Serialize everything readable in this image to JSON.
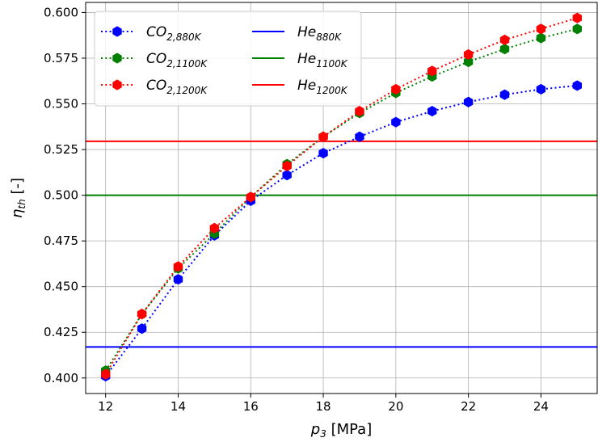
{
  "chart_data": {
    "type": "line",
    "xlabel_main": "p",
    "xlabel_sub": "3",
    "xlabel_unit": " [MPa]",
    "ylabel_main": "η",
    "ylabel_sub": "th",
    "ylabel_unit": " [-]",
    "xlim": [
      11.45,
      25.55
    ],
    "ylim": [
      0.3915,
      0.6055
    ],
    "xticks": [
      12,
      14,
      16,
      18,
      20,
      22,
      24
    ],
    "xtick_labels": [
      "12",
      "14",
      "16",
      "18",
      "20",
      "22",
      "24"
    ],
    "yticks": [
      0.4,
      0.425,
      0.45,
      0.475,
      0.5,
      0.525,
      0.55,
      0.575,
      0.6
    ],
    "ytick_labels": [
      "0.400",
      "0.425",
      "0.450",
      "0.475",
      "0.500",
      "0.525",
      "0.550",
      "0.575",
      "0.600"
    ],
    "grid": true,
    "legend_position": "top-left",
    "x": [
      12,
      13,
      14,
      15,
      16,
      17,
      18,
      19,
      20,
      21,
      22,
      23,
      24,
      25
    ],
    "series": [
      {
        "name_main": "CO",
        "name_sub": "2,880K",
        "style": "dotted-markers",
        "color": "#0000ff",
        "values": [
          0.401,
          0.427,
          0.454,
          0.478,
          0.497,
          0.511,
          0.523,
          0.532,
          0.54,
          0.546,
          0.551,
          0.555,
          0.558,
          0.56
        ]
      },
      {
        "name_main": "CO",
        "name_sub": "2,1100K",
        "style": "dotted-markers",
        "color": "#008000",
        "values": [
          0.404,
          0.435,
          0.46,
          0.479,
          0.499,
          0.517,
          0.532,
          0.545,
          0.556,
          0.565,
          0.573,
          0.58,
          0.586,
          0.591
        ]
      },
      {
        "name_main": "CO",
        "name_sub": "2,1200K",
        "style": "dotted-markers",
        "color": "#ff0000",
        "values": [
          0.402,
          0.435,
          0.461,
          0.482,
          0.499,
          0.516,
          0.532,
          0.546,
          0.558,
          0.568,
          0.577,
          0.585,
          0.591,
          0.597
        ]
      },
      {
        "name_main": "He",
        "name_sub": "880K",
        "style": "hline",
        "color": "#0000ff",
        "value": 0.417
      },
      {
        "name_main": "He",
        "name_sub": "1100K",
        "style": "hline",
        "color": "#008000",
        "value": 0.5
      },
      {
        "name_main": "He",
        "name_sub": "1200K",
        "style": "hline",
        "color": "#ff0000",
        "value": 0.5295
      }
    ]
  }
}
